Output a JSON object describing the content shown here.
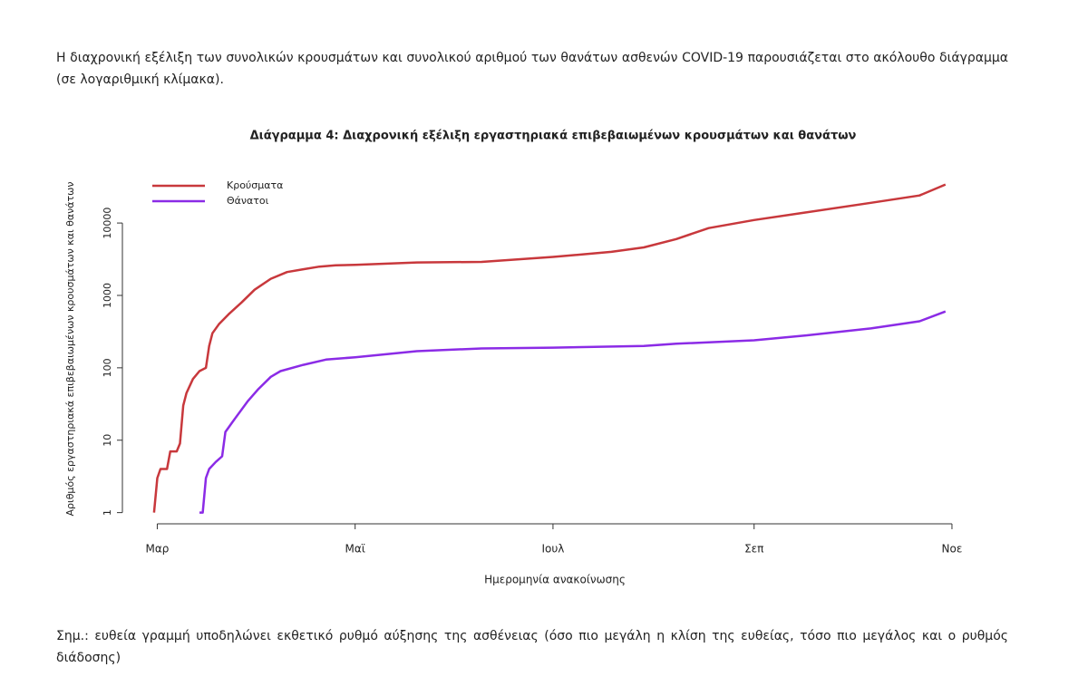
{
  "intro": "Η διαχρονική εξέλιξη των συνολικών κρουσμάτων και συνολικού αριθμού των θανάτων ασθενών COVID-19 παρουσιάζεται στο ακόλουθο διάγραμμα (σε λογαριθμική κλίμακα).",
  "note": "Σημ.: ευθεία γραμμή υποδηλώνει εκθετικό ρυθμό αύξησης της ασθένειας (όσο πιο μεγάλη η κλίση της ευθείας, τόσο πιο μεγάλος και ο ρυθμός διάδοσης)",
  "chart_data": {
    "type": "line",
    "title": "Διάγραμμα 4: Διαχρονική εξέλιξη εργαστηριακά επιβεβαιωμένων κρουσμάτων και θανάτων",
    "xlabel": "Ημερομηνία ανακοίνωσης",
    "ylabel": "Αριθμός εργαστηριακά επιβεβαιωμένων κρουσμάτων και θανάτων",
    "log_y": true,
    "legend": "top-left",
    "xlim": [
      -6,
      252
    ],
    "ylim": [
      0.7,
      40000
    ],
    "xticks": [
      {
        "value": 0,
        "label": "Μαρ"
      },
      {
        "value": 61,
        "label": "Μαϊ"
      },
      {
        "value": 122,
        "label": "Ιουλ"
      },
      {
        "value": 184,
        "label": "Σεπ"
      },
      {
        "value": 245,
        "label": "Νοε"
      }
    ],
    "yticks": [
      1,
      10,
      100,
      1000,
      10000
    ],
    "series": [
      {
        "name": "Κρούσματα",
        "color": "#c8383c",
        "x": [
          -1,
          0,
          1,
          3,
          4,
          6,
          7,
          8,
          9,
          11,
          13,
          15,
          16,
          17,
          19,
          22,
          26,
          30,
          35,
          40,
          45,
          50,
          55,
          61,
          80,
          100,
          122,
          140,
          150,
          160,
          170,
          184,
          200,
          220,
          235,
          243
        ],
        "values": [
          1,
          3,
          4,
          4,
          7,
          7,
          9,
          30,
          45,
          70,
          90,
          100,
          200,
          300,
          400,
          550,
          800,
          1200,
          1700,
          2100,
          2300,
          2500,
          2600,
          2650,
          2850,
          2900,
          3400,
          4000,
          4600,
          6000,
          8500,
          11000,
          14000,
          19000,
          24000,
          34000
        ]
      },
      {
        "name": "Θάνατοι",
        "color": "#8b2be6",
        "x": [
          13,
          14,
          15,
          16,
          18,
          20,
          21,
          24,
          28,
          31,
          35,
          38,
          45,
          52,
          61,
          80,
          100,
          122,
          150,
          160,
          184,
          200,
          220,
          235,
          243
        ],
        "values": [
          1,
          1,
          3,
          4,
          5,
          6,
          13,
          20,
          35,
          50,
          75,
          90,
          110,
          130,
          140,
          170,
          185,
          190,
          200,
          215,
          240,
          280,
          350,
          440,
          600
        ]
      }
    ]
  }
}
